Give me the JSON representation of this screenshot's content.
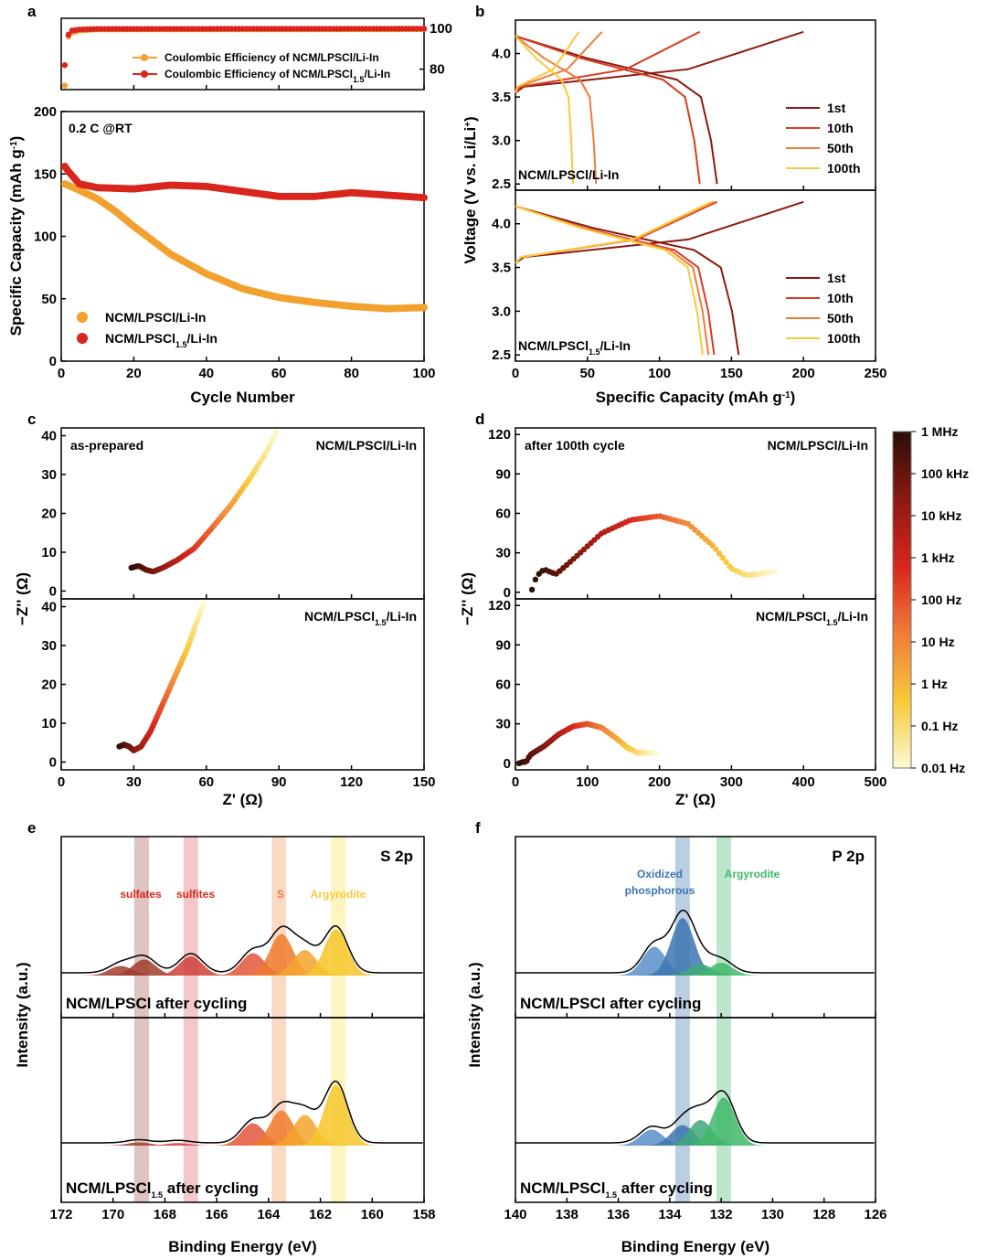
{
  "colors": {
    "orange": "#f2a12e",
    "red": "#d9261c",
    "c1": "#8b1a10",
    "c10": "#d83b22",
    "c50": "#f07c38",
    "c100": "#f8c93a",
    "dark": "#2a0d08",
    "blue": "#3c75b0",
    "green": "#3fb86a"
  },
  "chart_data": [
    {
      "panel": "a",
      "type": "scatter",
      "subplots": [
        {
          "name": "coulombic-efficiency",
          "yticks": [
            "80",
            "100"
          ],
          "ylim": [
            70,
            105
          ],
          "legend": [
            {
              "prefix": "Coulombic Efficiency of NCM/LPSCl/Li-In",
              "sub": "",
              "suffix": ""
            },
            {
              "prefix": "Coulombic Efficiency of NCM/LPSCl",
              "sub": "1.5",
              "suffix": "/Li-In"
            }
          ],
          "series": [
            {
              "name": "Coulombic Efficiency of NCM/LPSCl/Li-In",
              "x": [
                1,
                2,
                3,
                5,
                10,
                100
              ],
              "y": [
                72,
                96,
                98,
                99,
                99.5,
                99.6
              ]
            },
            {
              "name": "Coulombic Efficiency of NCM/LPSCl1.5/Li-In",
              "x": [
                1,
                2,
                3,
                5,
                10,
                100
              ],
              "y": [
                82,
                97,
                99,
                99.5,
                99.8,
                99.9
              ]
            }
          ]
        },
        {
          "name": "specific-capacity",
          "annotation": "0.2 C @RT",
          "xlabel": "Cycle Number",
          "ylabel_prefix": "Specific Capacity (mAh g",
          "ylabel_sup": "-1",
          "ylabel_suffix": ")",
          "xlim": [
            0,
            100
          ],
          "ylim": [
            0,
            200
          ],
          "xticks": [
            "0",
            "20",
            "40",
            "60",
            "80",
            "100"
          ],
          "yticks": [
            "0",
            "50",
            "100",
            "150",
            "200"
          ],
          "legend": [
            {
              "prefix": "NCM/LPSCl/Li-In",
              "sub": "",
              "suffix": ""
            },
            {
              "prefix": "NCM/LPSCl",
              "sub": "1.5",
              "suffix": "/Li-In"
            }
          ],
          "series": [
            {
              "name": "NCM/LPSCl/Li-In",
              "x": [
                1,
                5,
                10,
                15,
                20,
                25,
                30,
                40,
                50,
                60,
                70,
                80,
                90,
                100
              ],
              "y": [
                142,
                137,
                130,
                120,
                108,
                97,
                86,
                70,
                58,
                51,
                47,
                44,
                42,
                43
              ]
            },
            {
              "name": "NCM/LPSCl1.5/Li-In",
              "x": [
                1,
                2,
                5,
                10,
                20,
                30,
                40,
                50,
                60,
                70,
                80,
                90,
                100
              ],
              "y": [
                156,
                152,
                142,
                139,
                138,
                141,
                140,
                136,
                132,
                132,
                135,
                133,
                131
              ]
            }
          ]
        }
      ]
    },
    {
      "panel": "b",
      "type": "line",
      "xlabel_prefix": "Specific Capacity (mAh g",
      "xlabel_sup": "-1",
      "xlabel_suffix": ")",
      "ylabel_prefix": "Voltage (V vs. Li/Li",
      "ylabel_sup": "+",
      "ylabel_suffix": ")",
      "xlim": [
        0,
        250
      ],
      "ylim": [
        2.45,
        4.3
      ],
      "xticks": [
        "0",
        "50",
        "100",
        "150",
        "200",
        "250"
      ],
      "yticks": [
        "2.5",
        "3.0",
        "3.5",
        "4.0"
      ],
      "legend": [
        "1st",
        "10th",
        "50th",
        "100th"
      ],
      "subplots": [
        {
          "label_prefix": "NCM/LPSCl/Li-In",
          "label_sub": "",
          "label_suffix": "",
          "cycles": [
            {
              "name": "1st",
              "charge": 200,
              "discharge": 140
            },
            {
              "name": "10th",
              "charge": 128,
              "discharge": 128
            },
            {
              "name": "50th",
              "charge": 60,
              "discharge": 56
            },
            {
              "name": "100th",
              "charge": 44,
              "discharge": 40
            }
          ]
        },
        {
          "label_prefix": "NCM/LPSCl",
          "label_sub": "1.5",
          "label_suffix": "/Li-In",
          "cycles": [
            {
              "name": "1st",
              "charge": 200,
              "discharge": 155
            },
            {
              "name": "10th",
              "charge": 140,
              "discharge": 138
            },
            {
              "name": "50th",
              "charge": 138,
              "discharge": 134
            },
            {
              "name": "100th",
              "charge": 136,
              "discharge": 130
            }
          ]
        }
      ]
    },
    {
      "panel": "c",
      "type": "scatter",
      "xlabel": "Z' (Ω)",
      "ylabel": "−Z'' (Ω)",
      "xlim": [
        0,
        150
      ],
      "ylim": [
        -2,
        42
      ],
      "xticks": [
        "0",
        "30",
        "60",
        "90",
        "120",
        "150"
      ],
      "yticks": [
        "0",
        "10",
        "20",
        "30",
        "40"
      ],
      "subplots": [
        {
          "annotation": "as-prepared",
          "label_prefix": "NCM/LPSCl/Li-In",
          "label_sub": "",
          "label_suffix": "",
          "x": [
            29,
            32,
            35,
            38,
            42,
            48,
            55,
            62,
            70,
            78,
            85,
            89
          ],
          "y": [
            6,
            6.5,
            5.5,
            5,
            6,
            8,
            11,
            16,
            22,
            29,
            36,
            41
          ]
        },
        {
          "annotation": "",
          "label_prefix": "NCM/LPSCl",
          "label_sub": "1.5",
          "label_suffix": "/Li-In",
          "x": [
            24,
            26,
            28,
            30,
            33,
            37,
            42,
            47,
            52,
            56,
            59
          ],
          "y": [
            4,
            4.5,
            4,
            3,
            4,
            8,
            15,
            22,
            29,
            36,
            41
          ]
        }
      ]
    },
    {
      "panel": "d",
      "type": "scatter",
      "xlabel": "Z' (Ω)",
      "ylabel": "−Z'' (Ω)",
      "xlim": [
        0,
        500
      ],
      "ylim": [
        -5,
        125
      ],
      "xticks": [
        "0",
        "100",
        "200",
        "300",
        "400",
        "500"
      ],
      "yticks": [
        "0",
        "30",
        "60",
        "90",
        "120"
      ],
      "colorbar": [
        "1 MHz",
        "100 kHz",
        "10 kHz",
        "1 kHz",
        "100 Hz",
        "10 Hz",
        "1 Hz",
        "0.1 Hz",
        "0.01 Hz"
      ],
      "subplots": [
        {
          "annotation": "after 100th cycle",
          "label_prefix": "NCM/LPSCl/Li-In",
          "label_sub": "",
          "label_suffix": "",
          "x": [
            23,
            28,
            35,
            42,
            50,
            57,
            80,
            120,
            160,
            200,
            240,
            275,
            300,
            320,
            340,
            360
          ],
          "y": [
            2,
            10,
            16,
            17,
            15,
            14,
            25,
            45,
            55,
            58,
            52,
            35,
            18,
            13,
            14,
            16
          ]
        },
        {
          "annotation": "",
          "label_prefix": "NCM/LPSCl",
          "label_sub": "1.5",
          "label_suffix": "/Li-In",
          "x": [
            5,
            10,
            15,
            20,
            25,
            40,
            60,
            80,
            100,
            120,
            140,
            155,
            170,
            195
          ],
          "y": [
            0,
            1,
            1,
            6,
            8,
            13,
            22,
            28,
            30,
            27,
            19,
            12,
            8,
            8
          ]
        }
      ]
    },
    {
      "panel": "e",
      "type": "area",
      "title": "S 2p",
      "xlabel": "Binding Energy (eV)",
      "ylabel": "Intensity (a.u.)",
      "xlim": [
        172,
        158
      ],
      "xticks": [
        "172",
        "170",
        "168",
        "166",
        "164",
        "162",
        "160",
        "158"
      ],
      "bands": [
        {
          "label": "sulfates",
          "center": 168.9
        },
        {
          "label": "sulfites",
          "center": 167.0
        },
        {
          "label": "S",
          "center": 163.6
        },
        {
          "label": "Argyrodite",
          "center": 161.3
        }
      ],
      "subplots": [
        {
          "label_prefix": "NCM/LPSCl after cycling",
          "label_sub": "",
          "label_suffix": "",
          "peaks": [
            {
              "c": 169.7,
              "h": 0.15,
              "color": "#a03d2e"
            },
            {
              "c": 168.8,
              "h": 0.25,
              "color": "#a03d2e"
            },
            {
              "c": 167.0,
              "h": 0.3,
              "color": "#d0403a"
            },
            {
              "c": 164.6,
              "h": 0.35,
              "color": "#e2573a"
            },
            {
              "c": 163.5,
              "h": 0.65,
              "color": "#ee7a2c"
            },
            {
              "c": 162.6,
              "h": 0.4,
              "color": "#f4a52a"
            },
            {
              "c": 161.4,
              "h": 0.72,
              "color": "#f6c52a"
            }
          ]
        },
        {
          "label_prefix": "NCM/LPSCl",
          "label_sub": "1.5",
          "label_suffix": " after cycling",
          "peaks": [
            {
              "c": 169.0,
              "h": 0.05,
              "color": "#a03d2e"
            },
            {
              "c": 167.5,
              "h": 0.04,
              "color": "#d0403a"
            },
            {
              "c": 164.6,
              "h": 0.35,
              "color": "#e2573a"
            },
            {
              "c": 163.5,
              "h": 0.55,
              "color": "#ee7a2c"
            },
            {
              "c": 162.6,
              "h": 0.48,
              "color": "#f4a52a"
            },
            {
              "c": 161.4,
              "h": 0.95,
              "color": "#f6c52a"
            }
          ]
        }
      ]
    },
    {
      "panel": "f",
      "type": "area",
      "title": "P 2p",
      "xlabel": "Binding Energy (eV)",
      "ylabel": "Intensity (a.u.)",
      "xlim": [
        140,
        126
      ],
      "xticks": [
        "140",
        "138",
        "136",
        "134",
        "132",
        "130",
        "128",
        "126"
      ],
      "bands": [
        {
          "label": "Oxidized phosphorous",
          "label_lines": [
            "Oxidized",
            "phosphorous"
          ],
          "center": 133.5
        },
        {
          "label": "Argyrodite",
          "label_lines": [
            "Argyrodite"
          ],
          "center": 131.9
        }
      ],
      "subplots": [
        {
          "label_prefix": "NCM/LPSCl after cycling",
          "label_sub": "",
          "label_suffix": "",
          "peaks": [
            {
              "c": 134.6,
              "h": 0.45,
              "color": "#5b8fc8"
            },
            {
              "c": 133.5,
              "h": 0.9,
              "color": "#3c75b0"
            },
            {
              "c": 132.8,
              "h": 0.18,
              "color": "#3fa87a"
            },
            {
              "c": 132.0,
              "h": 0.2,
              "color": "#3fb86a"
            }
          ]
        },
        {
          "label_prefix": "NCM/LPSCl",
          "label_sub": "1.5",
          "label_suffix": " after cycling",
          "peaks": [
            {
              "c": 134.7,
              "h": 0.25,
              "color": "#5b8fc8"
            },
            {
              "c": 133.5,
              "h": 0.32,
              "color": "#3c75b0"
            },
            {
              "c": 132.8,
              "h": 0.4,
              "color": "#3fa87a"
            },
            {
              "c": 131.9,
              "h": 0.75,
              "color": "#3fb86a"
            }
          ]
        }
      ]
    }
  ]
}
